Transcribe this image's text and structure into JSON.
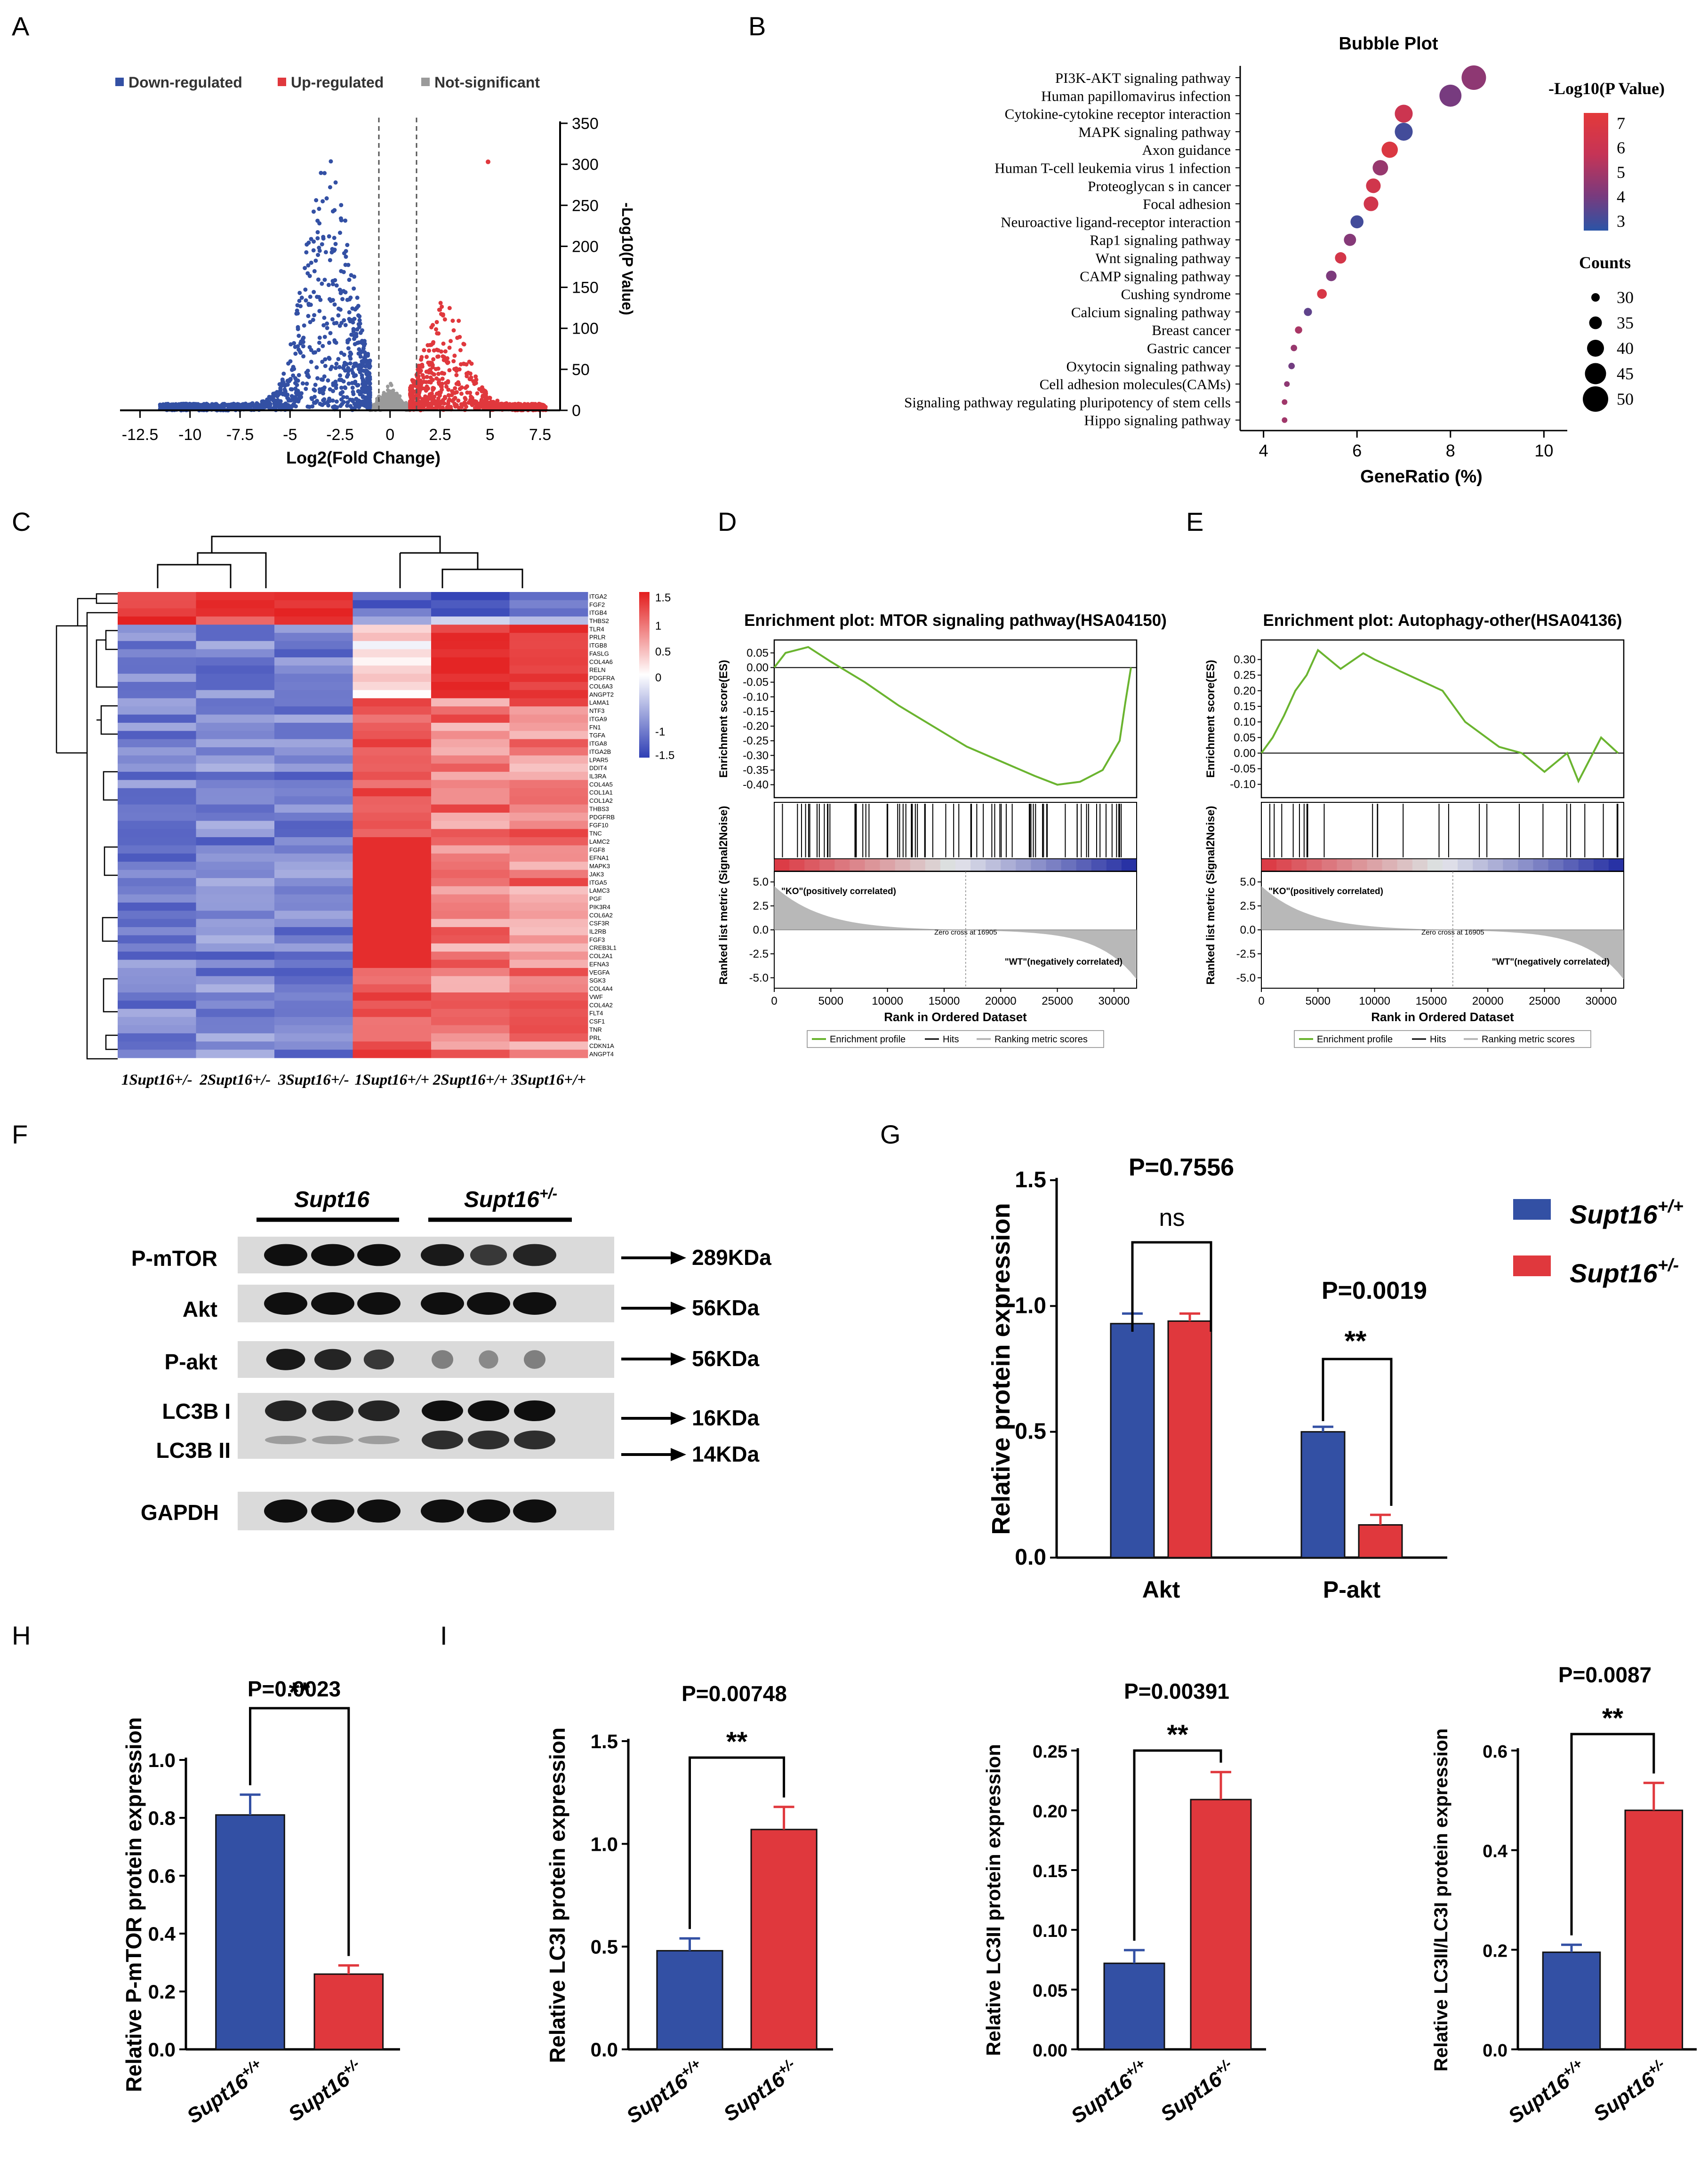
{
  "colors": {
    "blue": "#3350a4",
    "red": "#e0383d",
    "grey": "#9a9a9a",
    "dark": "#1a1a1a",
    "green": "#6ab42f"
  },
  "panels": {
    "A": {
      "letter": "A",
      "legend": [
        "Down-regulated",
        "Up-regulated",
        "Not-significant"
      ],
      "xlabel": "Log2(Fold Change)",
      "ylabel": "-Log10(P Value)",
      "xticks": [
        "-12.5",
        "-10",
        "-7.5",
        "-5",
        "-2.5",
        "0",
        "2.5",
        "5",
        "7.5"
      ],
      "yticks": [
        "0",
        "50",
        "100",
        "150",
        "200",
        "250",
        "300",
        "350"
      ]
    },
    "B": {
      "letter": "B",
      "title": "Bubble Plot",
      "colorbar_title": "-Log10(P Value)",
      "colorbar_ticks": [
        "7",
        "6",
        "5",
        "4",
        "3"
      ],
      "size_title": "Counts",
      "size_ticks": [
        "30",
        "35",
        "40",
        "45",
        "50"
      ],
      "xlabel": "GeneRatio (%)",
      "xticks": [
        "4",
        "6",
        "8",
        "10"
      ]
    },
    "C": {
      "letter": "C",
      "samples": [
        "1Supt16+/-",
        "2Supt16+/-",
        "3Supt16+/-",
        "1Supt16+/+",
        "2Supt16+/+",
        "3Supt16+/+"
      ],
      "genes": [
        "ITGA2",
        "FGF2",
        "ITGB4",
        "THBS2",
        "TLR4",
        "PRLR",
        "ITGB8",
        "FASLG",
        "COL4A6",
        "RELN",
        "PDGFRA",
        "COL6A3",
        "ANGPT2",
        "LAMA1",
        "NTF3",
        "ITGA9",
        "FN1",
        "TGFA",
        "ITGA8",
        "ITGA2B",
        "LPAR5",
        "DDIT4",
        "IL3RA",
        "COL4A5",
        "COL1A1",
        "COL1A2",
        "THBS3",
        "PDGFRB",
        "FGF10",
        "TNC",
        "LAMC2",
        "FGF8",
        "EFNA1",
        "MAPK3",
        "JAK3",
        "ITGA5",
        "LAMC3",
        "PGF",
        "PIK3R4",
        "COL6A2",
        "CSF3R",
        "IL2RB",
        "FGF3",
        "CREB3L1",
        "COL2A1",
        "EFNA3",
        "VEGFA",
        "SGK3",
        "COL4A4",
        "VWF",
        "COL4A2",
        "FLT4",
        "CSF1",
        "TNR",
        "PRL",
        "CDKN1A",
        "ANGPT4"
      ],
      "scale_ticks": [
        "1.5",
        "1",
        "0.5",
        "0",
        "-1",
        "-1.5"
      ]
    },
    "D": {
      "letter": "D",
      "title": "Enrichment plot: MTOR signaling pathway(HSA04150)",
      "es_label": "Enrichment score(ES)",
      "rank_label": "Ranked list metric (Signal2Noise)",
      "es_ticks": [
        "0.05",
        "0.00",
        "-0.05",
        "-0.10",
        "-0.15",
        "-0.20",
        "-0.25",
        "-0.30",
        "-0.35",
        "-0.40"
      ],
      "rank_ticks": [
        "5.0",
        "2.5",
        "0.0",
        "-2.5",
        "-5.0"
      ],
      "xticks": [
        "0",
        "5000",
        "10000",
        "15000",
        "20000",
        "25000",
        "30000"
      ],
      "xlabel": "Rank in Ordered Dataset",
      "ko_label": "\"KO\"(positively  correlated)",
      "wt_label": "\"WT\"(negatively  correlated)",
      "zero_cross": "Zero cross at 16905",
      "legend": [
        "Enrichment profile",
        "Hits",
        "Ranking  metric scores"
      ]
    },
    "E": {
      "letter": "E",
      "title": "Enrichment plot: Autophagy-other(HSA04136)",
      "es_label": "Enrichment  score(ES)",
      "rank_label": "Ranked list metric  (Signal2Noise)",
      "es_ticks": [
        "0.30",
        "0.25",
        "0.20",
        "0.15",
        "0.10",
        "0.05",
        "0.00",
        "-0.05",
        "-0.10"
      ],
      "rank_ticks": [
        "5.0",
        "2.5",
        "0.0",
        "-2.5",
        "-5.0"
      ],
      "xticks": [
        "0",
        "5000",
        "10000",
        "15000",
        "20000",
        "25000",
        "30000"
      ],
      "xlabel": "Rank in Ordered Dataset",
      "ko_label": "\"KO\"(positively correlated)",
      "wt_label": "\"WT\"(negatively correlated)",
      "zero_cross": "Zero cross at 16905",
      "legend": [
        "Enrichment  profile",
        "Hits",
        "Ranking  metric scores"
      ]
    },
    "F": {
      "letter": "F",
      "group1": "Supt16",
      "group2": "Supt16",
      "group2_sup": "+/-",
      "rows": [
        {
          "label": "P-mTOR",
          "kda": "289KDa"
        },
        {
          "label": "Akt",
          "kda": "56KDa"
        },
        {
          "label": "P-akt",
          "kda": "56KDa"
        },
        {
          "label": "LC3B I",
          "kda": "16KDa"
        },
        {
          "label": "LC3B II",
          "kda": "14KDa"
        },
        {
          "label": "GAPDH",
          "kda": ""
        }
      ]
    },
    "G": {
      "letter": "G",
      "ylabel": "Relative protein expression",
      "p1": "P=0.7556",
      "p2": "P=0.0019",
      "sig1": "ns",
      "sig2": "**",
      "legend1": "Supt16",
      "legend1_sup": "+/+",
      "legend2": "Supt16",
      "legend2_sup": "+/-",
      "yticks": [
        "0.0",
        "0.5",
        "1.0",
        "1.5"
      ]
    },
    "H": {
      "letter": "H",
      "ylabel": "Relative P-mTOR protein expression",
      "p": "P=0.0023",
      "sig": "**",
      "yticks": [
        "0.0",
        "0.2",
        "0.4",
        "0.6",
        "0.8",
        "1.0"
      ]
    },
    "I": {
      "letter": "I",
      "plots": [
        {
          "ylabel": "Relative LC3I protein expression",
          "p": "P=0.00748",
          "sig": "**",
          "yticks": [
            "0.0",
            "0.5",
            "1.0",
            "1.5"
          ]
        },
        {
          "ylabel": "Relative LC3II protein expression",
          "p": "P=0.00391",
          "sig": "**",
          "yticks": [
            "0.00",
            "0.05",
            "0.10",
            "0.15",
            "0.20",
            "0.25"
          ]
        },
        {
          "ylabel": "Relative LC3II/LC3I protein expression",
          "p": "P=0.0087",
          "sig": "**",
          "yticks": [
            "0.0",
            "0.2",
            "0.4",
            "0.6"
          ]
        }
      ]
    },
    "xcats": [
      "Supt16+/+",
      "Supt16+/-"
    ]
  },
  "chart_data": [
    {
      "type": "scatter",
      "id": "A",
      "title": "",
      "xlabel": "Log2(Fold Change)",
      "ylabel": "-Log10(P Value)",
      "xlim": [
        -13.5,
        8.5
      ],
      "ylim": [
        0,
        350
      ],
      "thresholds": {
        "log2fc": [
          -1,
          1
        ]
      },
      "series": [
        {
          "name": "Down-regulated",
          "note": "approx. 1000 genes, max -Log10(P) ~ 310 near log2FC -3"
        },
        {
          "name": "Up-regulated",
          "note": "approx. 700 genes, max -Log10(P) ~ 303 near log2FC 4.9"
        },
        {
          "name": "Not-significant",
          "note": "within |log2FC| < 1"
        }
      ]
    },
    {
      "type": "scatter",
      "id": "B",
      "title": "Bubble Plot",
      "xlabel": "GeneRatio (%)",
      "xlim": [
        3.5,
        10.5
      ],
      "size_label": "Counts",
      "color_label": "-Log10(P Value)",
      "color_range": [
        2.5,
        7.5
      ],
      "categories": [
        "PI3K-AKT  signaling pathway",
        "Human papillomavirus infection",
        "Cytokine-cytokine  receptor  interaction",
        "MAPK  signaling pathway",
        "Axon guidance",
        "Human  T-cell leukemia virus 1 infection",
        "Proteoglycan  s in cancer",
        "Focal adhesion",
        "Neuroactive ligand-receptor  interaction",
        "Rap1  signaling pathway",
        "Wnt  signaling pathway",
        "CAMP  signaling pathway",
        "Cushing syndrome",
        "Calcium  signaling pathway",
        "Breast cancer",
        "Gastric cancer",
        "Oxytocin  signaling pathway",
        "Cell adhesion molecules(CAMs)",
        "Signaling pathway regulating pluripotency  of stem  cells",
        "Hippo  signaling pathway"
      ],
      "gene_ratio": [
        8.5,
        8.0,
        7.0,
        7.0,
        6.7,
        6.5,
        6.35,
        6.3,
        6.0,
        5.85,
        5.65,
        5.45,
        5.25,
        4.95,
        4.75,
        4.65,
        4.6,
        4.5,
        4.45,
        4.45
      ],
      "counts": [
        50,
        47,
        42,
        42,
        40,
        39,
        38,
        38,
        36,
        35,
        34,
        33,
        32,
        30,
        29,
        28,
        28,
        27,
        27,
        27
      ],
      "neglog10p": [
        4.6,
        4.1,
        6.2,
        3.0,
        7.0,
        4.8,
        6.4,
        6.4,
        3.0,
        4.4,
        6.6,
        4.2,
        6.8,
        3.6,
        5.2,
        4.8,
        4.0,
        4.6,
        5.0,
        5.0
      ]
    },
    {
      "type": "heatmap",
      "id": "C",
      "note": "Row-scaled expression; ITGA2/FGF2/ITGB4/THBS2 higher in Supt16+/- samples, remaining genes higher in Supt16+/+ samples",
      "zlim": [
        -1.5,
        1.5
      ]
    },
    {
      "type": "line",
      "id": "D",
      "title": "Enrichment plot: MTOR signaling pathway(HSA04150)",
      "x": [
        0,
        1000,
        3000,
        5000,
        8000,
        11000,
        14000,
        17000,
        20000,
        23000,
        25000,
        27000,
        29000,
        30500,
        31000,
        31500
      ],
      "es": [
        0,
        0.05,
        0.07,
        0.02,
        -0.05,
        -0.13,
        -0.2,
        -0.27,
        -0.32,
        -0.37,
        -0.4,
        -0.39,
        -0.35,
        -0.25,
        -0.12,
        0
      ],
      "xlim": [
        0,
        32000
      ],
      "ylim": [
        -0.42,
        0.07
      ]
    },
    {
      "type": "line",
      "id": "E",
      "title": "Enrichment plot: Autophagy-other(HSA04136)",
      "x": [
        0,
        1000,
        2000,
        3000,
        4000,
        5000,
        7000,
        9000,
        10000,
        13000,
        16000,
        18000,
        21000,
        23000,
        25000,
        27000,
        28000,
        29000,
        30000,
        31500
      ],
      "es": [
        0,
        0.05,
        0.12,
        0.2,
        0.25,
        0.33,
        0.27,
        0.32,
        0.3,
        0.25,
        0.2,
        0.1,
        0.02,
        0.0,
        -0.06,
        0.0,
        -0.09,
        -0.02,
        0.05,
        0.0
      ],
      "xlim": [
        0,
        32000
      ],
      "ylim": [
        -0.12,
        0.34
      ]
    },
    {
      "type": "bar",
      "id": "G",
      "categories": [
        "Akt",
        "P-akt"
      ],
      "series": [
        {
          "name": "Supt16+/+",
          "values": [
            0.93,
            0.5
          ],
          "errors": [
            0.04,
            0.02
          ]
        },
        {
          "name": "Supt16+/-",
          "values": [
            0.94,
            0.13
          ],
          "errors": [
            0.03,
            0.04
          ]
        }
      ],
      "ylabel": "Relative protein expression",
      "ylim": [
        0,
        1.5
      ]
    },
    {
      "type": "bar",
      "id": "H",
      "categories": [
        "Supt16+/+",
        "Supt16+/-"
      ],
      "values": [
        0.81,
        0.26
      ],
      "errors": [
        0.07,
        0.03
      ],
      "ylabel": "Relative P-mTOR protein expression",
      "ylim": [
        0,
        1.0
      ]
    },
    {
      "type": "bar",
      "id": "I1",
      "categories": [
        "Supt16+/+",
        "Supt16+/-"
      ],
      "values": [
        0.48,
        1.07
      ],
      "errors": [
        0.06,
        0.11
      ],
      "ylabel": "Relative LC3I protein expression",
      "ylim": [
        0,
        1.5
      ]
    },
    {
      "type": "bar",
      "id": "I2",
      "categories": [
        "Supt16+/+",
        "Supt16+/-"
      ],
      "values": [
        0.072,
        0.209
      ],
      "errors": [
        0.011,
        0.023
      ],
      "ylabel": "Relative LC3II protein expression",
      "ylim": [
        0,
        0.25
      ]
    },
    {
      "type": "bar",
      "id": "I3",
      "categories": [
        "Supt16+/+",
        "Supt16+/-"
      ],
      "values": [
        0.195,
        0.48
      ],
      "errors": [
        0.015,
        0.055
      ],
      "ylabel": "Relative LC3II/LC3I protein expression",
      "ylim": [
        0,
        0.6
      ]
    }
  ]
}
